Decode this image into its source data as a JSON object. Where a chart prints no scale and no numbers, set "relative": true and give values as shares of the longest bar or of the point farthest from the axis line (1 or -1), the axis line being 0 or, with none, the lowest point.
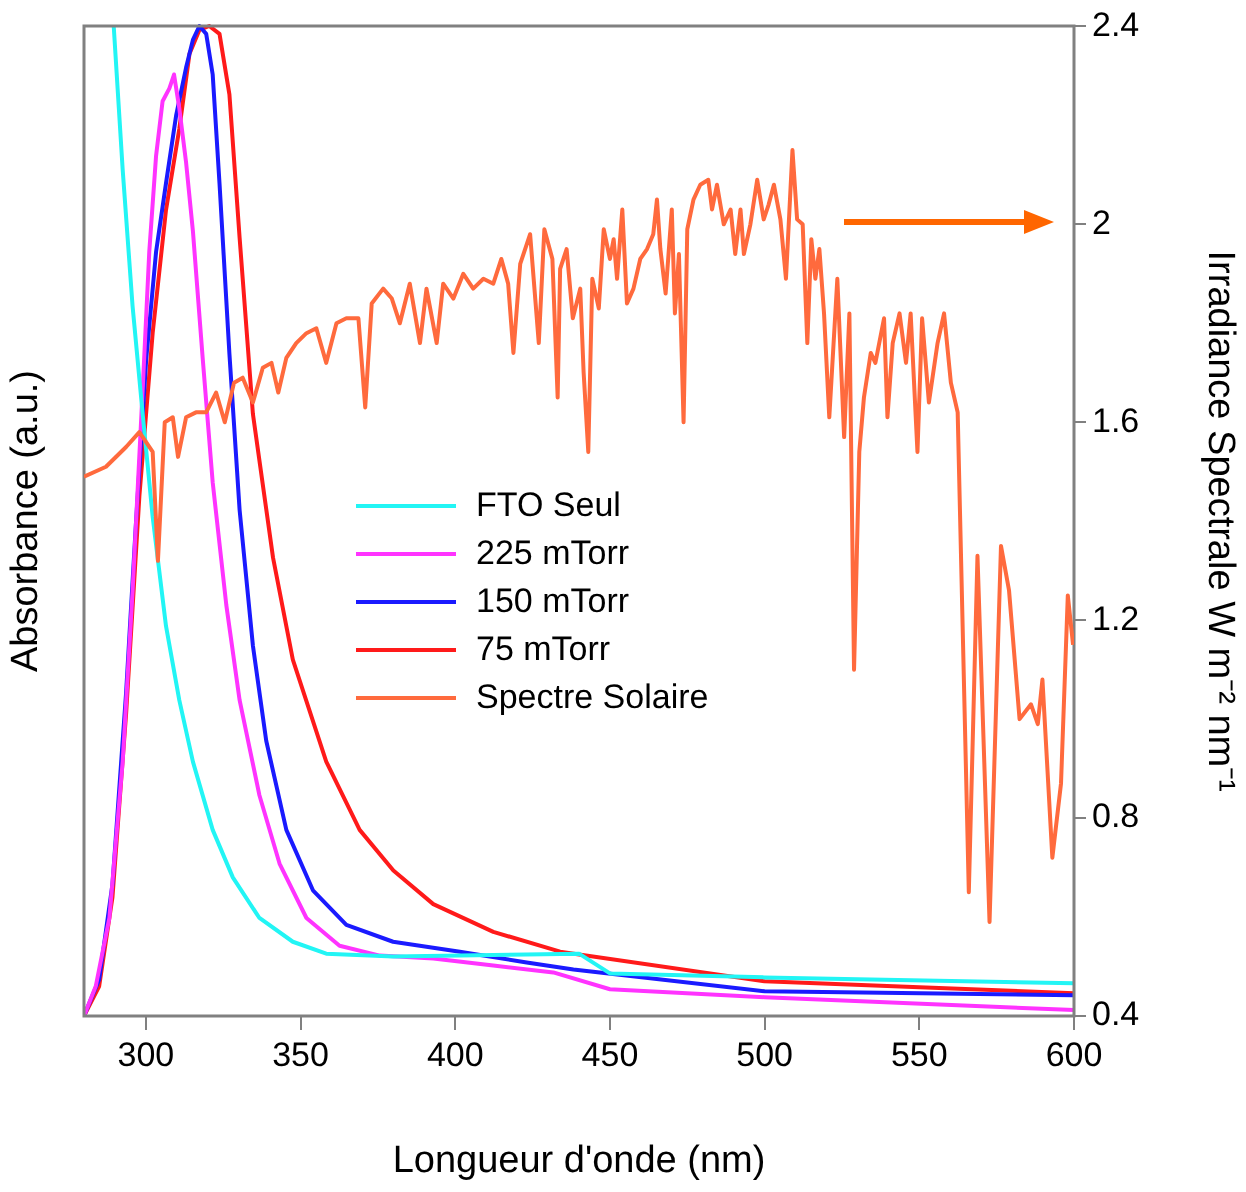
{
  "chart_data": [
    {
      "type": "line",
      "relative": true,
      "xlabel": "Longueur d'onde (nm)",
      "ylabel": "Absorbance (a.u.)",
      "xlim": [
        280,
        600
      ],
      "xticks": [
        300,
        350,
        400,
        450,
        500,
        550,
        600
      ],
      "grid": false,
      "legend": "center",
      "marker": "none",
      "line_style": "solid",
      "series": [
        {
          "name": "FTO Seul",
          "color": "#22f5f5",
          "x": [
            289.6,
            292.5,
            295.7,
            299,
            302.2,
            306.5,
            310.8,
            315.2,
            321.6,
            328.1,
            336.7,
            347.5,
            358.3,
            380,
            440,
            450,
            500,
            600
          ],
          "values": [
            1.0,
            0.855,
            0.717,
            0.607,
            0.504,
            0.394,
            0.319,
            0.257,
            0.188,
            0.14,
            0.099,
            0.075,
            0.063,
            0.06,
            0.063,
            0.043,
            0.039,
            0.033
          ]
        },
        {
          "name": "225 mTorr",
          "color": "#ff33ff",
          "x": [
            280,
            283.8,
            288.2,
            292.5,
            295.7,
            299,
            301.1,
            303.3,
            305.4,
            307.6,
            309.1,
            310.8,
            313,
            315.2,
            318.4,
            321.6,
            326,
            330.3,
            336.7,
            343.2,
            351.9,
            362.6,
            375.6,
            392.9,
            412.3,
            431.7,
            450,
            500,
            600
          ],
          "values": [
            0,
            0.03,
            0.099,
            0.257,
            0.429,
            0.635,
            0.772,
            0.869,
            0.924,
            0.937,
            0.951,
            0.917,
            0.862,
            0.793,
            0.663,
            0.539,
            0.415,
            0.319,
            0.223,
            0.154,
            0.099,
            0.071,
            0.061,
            0.058,
            0.051,
            0.044,
            0.027,
            0.019,
            0.006
          ]
        },
        {
          "name": "150 mTorr",
          "color": "#1a1aff",
          "x": [
            280,
            284.9,
            289.2,
            293.6,
            296.8,
            300.1,
            303.3,
            306.5,
            309.8,
            313,
            315.2,
            317.3,
            319.5,
            321.6,
            323.8,
            327,
            330.3,
            334.6,
            338.9,
            345.4,
            354,
            364.8,
            379.9,
            401.5,
            423.1,
            438.2,
            500,
            600
          ],
          "values": [
            0,
            0.037,
            0.133,
            0.326,
            0.498,
            0.663,
            0.772,
            0.841,
            0.91,
            0.958,
            0.986,
            1.0,
            0.992,
            0.951,
            0.841,
            0.669,
            0.511,
            0.374,
            0.278,
            0.188,
            0.127,
            0.092,
            0.075,
            0.065,
            0.054,
            0.047,
            0.025,
            0.021
          ]
        },
        {
          "name": "75 mTorr",
          "color": "#ff1a1a",
          "x": [
            280,
            284.9,
            289.2,
            293.6,
            297.9,
            302.2,
            306.5,
            310.8,
            314.1,
            317.3,
            320.5,
            323.8,
            327,
            330.3,
            334.6,
            341.1,
            347.5,
            358.3,
            369.1,
            380,
            392.9,
            412.3,
            433.9,
            500,
            550,
            600
          ],
          "values": [
            0,
            0.03,
            0.12,
            0.305,
            0.525,
            0.69,
            0.814,
            0.896,
            0.972,
            0.996,
            1.0,
            0.992,
            0.931,
            0.786,
            0.608,
            0.463,
            0.36,
            0.257,
            0.188,
            0.147,
            0.113,
            0.085,
            0.065,
            0.035,
            0.029,
            0.023
          ]
        }
      ]
    },
    {
      "type": "line",
      "ylabel": "Irradiance Spectrale W m⁻² nm⁻¹",
      "xlim": [
        280,
        600
      ],
      "xticks": [
        300,
        350,
        400,
        450,
        500,
        550,
        600
      ],
      "ylim": [
        0.4,
        2.4
      ],
      "yticks": [
        0.4,
        0.8,
        1.2,
        1.6,
        2,
        2.4
      ],
      "tick_labels": "y",
      "grid": false,
      "legend": "center",
      "marker": "none",
      "line_style": "solid",
      "series": [
        {
          "name": "Spectre Solaire",
          "color": "#ff6a3d",
          "x": [
            280,
            287.1,
            293.6,
            297.9,
            302.2,
            303.9,
            306.1,
            308.7,
            310.4,
            313,
            316.2,
            319.5,
            322.7,
            325.5,
            328.5,
            331.3,
            334.6,
            337.8,
            340.6,
            342.8,
            345.4,
            348.6,
            351.9,
            355.1,
            358.3,
            361.6,
            364.8,
            368.7,
            370.9,
            373,
            376.7,
            379.5,
            382.1,
            385.3,
            388.6,
            390.7,
            394,
            396.1,
            399.4,
            402.6,
            405.8,
            409.1,
            412.3,
            414.9,
            417.1,
            418.8,
            421,
            424.2,
            427,
            428.8,
            431.4,
            433.1,
            433.9,
            436,
            438,
            440.4,
            441.5,
            443,
            444.3,
            446.4,
            448,
            450,
            451.2,
            452.3,
            454,
            455.5,
            457.6,
            459.8,
            462,
            464,
            465.2,
            466.3,
            468,
            470,
            471,
            472.3,
            473.8,
            475,
            477,
            479.2,
            481.8,
            483,
            484.6,
            486.8,
            489,
            490.5,
            492.2,
            493.3,
            495.4,
            497.6,
            499.7,
            501.3,
            503,
            505.1,
            506.9,
            509,
            510.5,
            512.3,
            513.8,
            515.1,
            516.4,
            517.7,
            519.2,
            520.9,
            523.5,
            525.7,
            527.4,
            528.9,
            530.6,
            532.1,
            534.3,
            535.8,
            538.6,
            539.7,
            541.4,
            543.6,
            545.7,
            547.2,
            549.4,
            550.9,
            553.1,
            555.9,
            558,
            560.2,
            562.4,
            566,
            568.8,
            572.7,
            576.4,
            579,
            582.4,
            586.1,
            588.3,
            589.8,
            593,
            595.8,
            598,
            599.7
          ],
          "values": [
            1.49,
            1.51,
            1.55,
            1.58,
            1.54,
            1.32,
            1.6,
            1.61,
            1.53,
            1.61,
            1.62,
            1.62,
            1.66,
            1.6,
            1.68,
            1.69,
            1.64,
            1.71,
            1.72,
            1.66,
            1.73,
            1.76,
            1.78,
            1.79,
            1.72,
            1.8,
            1.81,
            1.81,
            1.63,
            1.84,
            1.87,
            1.85,
            1.8,
            1.88,
            1.76,
            1.87,
            1.76,
            1.88,
            1.85,
            1.9,
            1.87,
            1.89,
            1.88,
            1.93,
            1.88,
            1.74,
            1.92,
            1.98,
            1.76,
            1.99,
            1.93,
            1.65,
            1.91,
            1.95,
            1.81,
            1.87,
            1.7,
            1.54,
            1.89,
            1.83,
            1.99,
            1.93,
            1.97,
            1.89,
            2.03,
            1.84,
            1.87,
            1.93,
            1.95,
            1.98,
            2.05,
            1.95,
            1.86,
            2.03,
            1.82,
            1.94,
            1.6,
            1.99,
            2.05,
            2.08,
            2.09,
            2.03,
            2.08,
            2.0,
            2.03,
            1.94,
            2.03,
            1.94,
            2.0,
            2.09,
            2.01,
            2.04,
            2.08,
            2.01,
            1.89,
            2.15,
            2.01,
            2.0,
            1.76,
            1.97,
            1.89,
            1.95,
            1.82,
            1.61,
            1.89,
            1.57,
            1.82,
            1.1,
            1.54,
            1.65,
            1.74,
            1.72,
            1.81,
            1.61,
            1.76,
            1.82,
            1.72,
            1.82,
            1.54,
            1.81,
            1.64,
            1.76,
            1.82,
            1.68,
            1.62,
            0.65,
            1.33,
            0.59,
            1.35,
            1.26,
            1.0,
            1.03,
            0.99,
            1.08,
            0.72,
            0.87,
            1.25,
            1.15
          ]
        }
      ]
    }
  ]
}
